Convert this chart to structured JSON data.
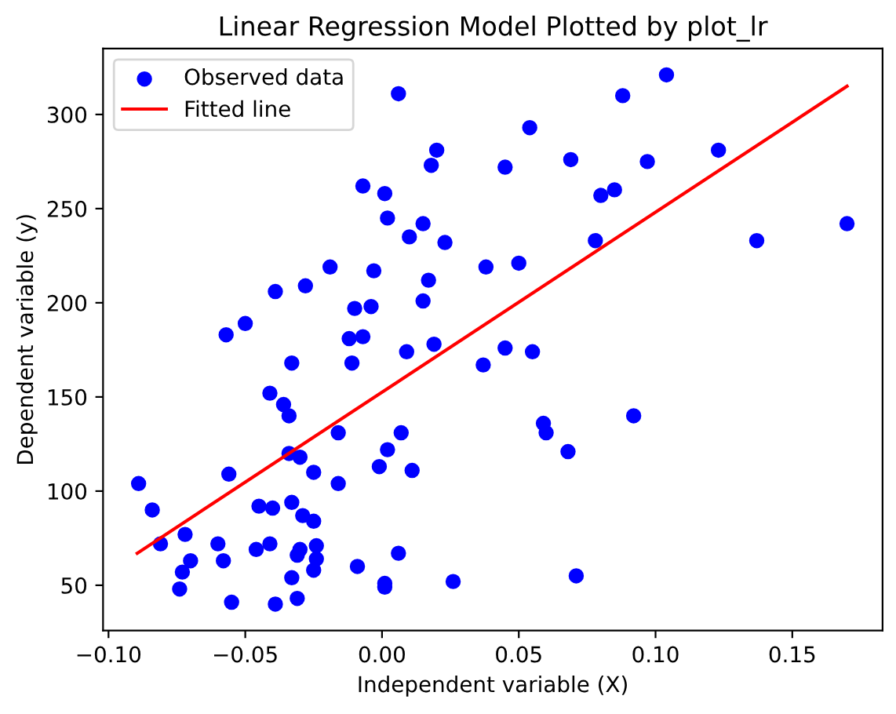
{
  "chart_data": {
    "type": "scatter",
    "title": "Linear Regression Model Plotted by plot_lr",
    "xlabel": "Independent variable (X)",
    "ylabel": "Dependent variable (y)",
    "xlim": [
      -0.102,
      0.183
    ],
    "ylim": [
      26,
      335
    ],
    "xticks": [
      {
        "value": -0.1,
        "label": "−0.10"
      },
      {
        "value": -0.05,
        "label": "−0.05"
      },
      {
        "value": 0,
        "label": "0.00"
      },
      {
        "value": 0.05,
        "label": "0.05"
      },
      {
        "value": 0.1,
        "label": "0.10"
      },
      {
        "value": 0.15,
        "label": "0.15"
      }
    ],
    "yticks": [
      50,
      100,
      150,
      200,
      250,
      300
    ],
    "grid": false,
    "legend": "top left",
    "series": [
      {
        "name": "Observed data",
        "marker": "circle",
        "color": "#0000ff",
        "x": [
          -0.089,
          -0.084,
          -0.081,
          -0.072,
          -0.07,
          -0.073,
          -0.074,
          -0.06,
          -0.058,
          -0.055,
          -0.056,
          -0.057,
          -0.05,
          -0.046,
          -0.045,
          -0.041,
          -0.04,
          -0.039,
          -0.041,
          -0.036,
          -0.034,
          -0.033,
          -0.034,
          -0.03,
          -0.033,
          -0.033,
          -0.031,
          -0.031,
          -0.03,
          -0.029,
          -0.025,
          -0.025,
          -0.024,
          -0.024,
          -0.025,
          -0.016,
          -0.016,
          -0.011,
          -0.012,
          -0.007,
          -0.009,
          -0.001,
          0.002,
          0.007,
          0.011,
          0.009,
          0.019,
          0.001,
          0.001,
          0.006,
          0.026,
          0.037,
          0.006,
          0.02,
          0.018,
          -0.007,
          0.001,
          0.002,
          0.015,
          0.01,
          0.023,
          -0.019,
          -0.003,
          0.017,
          0.038,
          -0.039,
          -0.028,
          0.015,
          -0.01,
          -0.004,
          0.104,
          0.088,
          0.054,
          0.045,
          0.069,
          0.097,
          0.123,
          0.08,
          0.085,
          0.078,
          0.137,
          0.17,
          0.05,
          0.045,
          0.055,
          0.059,
          0.06,
          0.068,
          0.092,
          0.071
        ],
        "values": [
          104,
          90,
          72,
          77,
          63,
          57,
          48,
          72,
          63,
          41,
          109,
          183,
          189,
          69,
          92,
          72,
          91,
          40,
          152,
          146,
          140,
          168,
          120,
          118,
          94,
          54,
          43,
          66,
          69,
          87,
          84,
          110,
          71,
          64,
          58,
          131,
          104,
          168,
          181,
          182,
          60,
          113,
          122,
          131,
          111,
          174,
          178,
          51,
          49,
          67,
          52,
          167,
          311,
          281,
          273,
          262,
          258,
          245,
          242,
          235,
          232,
          219,
          217,
          212,
          219,
          206,
          209,
          201,
          197,
          198,
          321,
          310,
          293,
          272,
          276,
          275,
          281,
          257,
          260,
          233,
          233,
          242,
          221,
          176,
          174,
          136,
          131,
          121,
          140,
          55
        ]
      },
      {
        "name": "Fitted line",
        "type": "line",
        "color": "#ff0000",
        "x": [
          -0.0895,
          0.17
        ],
        "values": [
          67,
          315
        ]
      }
    ]
  }
}
